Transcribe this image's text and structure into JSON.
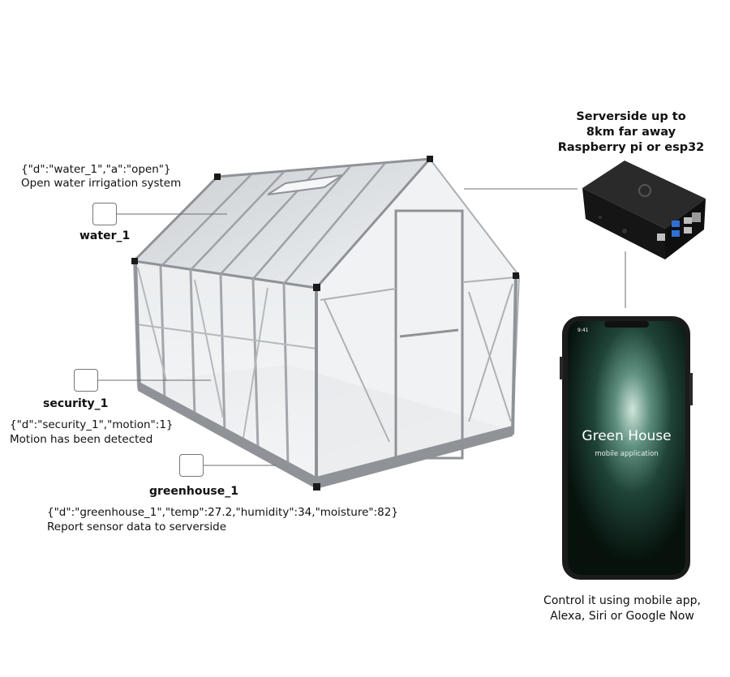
{
  "nodes": {
    "water": {
      "json": "{\"d\":\"water_1\",\"a\":\"open\"}",
      "desc": "Open water irrigation system",
      "label": "water_1"
    },
    "security": {
      "label": "security_1",
      "json": "{\"d\":\"security_1\",\"motion\":1}",
      "desc": "Motion has been detected"
    },
    "greenhouse": {
      "label": "greenhouse_1",
      "json": "{\"d\":\"greenhouse_1\",\"temp\":27.2,\"humidity\":34,\"moisture\":82}",
      "desc": "Report sensor data to serverside"
    }
  },
  "server": {
    "line1": "Serverside up to",
    "line2": "8km far away",
    "line3": "Raspberry pi or esp32"
  },
  "phone": {
    "time": "9:41",
    "title": "Green House",
    "subtitle": "mobile application"
  },
  "control": {
    "line1": "Control it using mobile app,",
    "line2": "Alexa, Siri or Google Now"
  },
  "colors": {
    "frame": "#9ea2a6",
    "glass": "#dfe3e6",
    "connector": "#6e6e6e",
    "server_case": "#161616",
    "phone_screen": "#0b1a14",
    "usb_blue": "#2f6fd6"
  }
}
